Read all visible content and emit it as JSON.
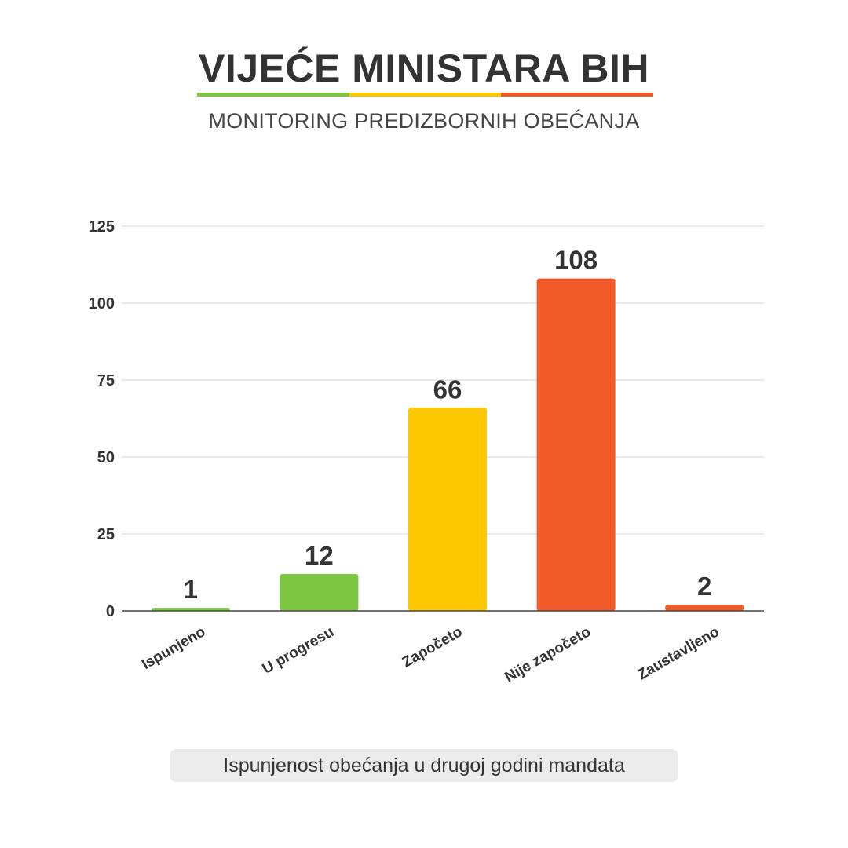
{
  "header": {
    "title": "VIJEĆE MINISTARA BIH",
    "subtitle": "MONITORING PREDIZBORNIH OBEĆANJA",
    "stripe_colors": [
      "#7dc63f",
      "#ffc700",
      "#f05a28"
    ]
  },
  "chart_data": {
    "type": "bar",
    "categories": [
      "Ispunjeno",
      "U progresu",
      "Započeto",
      "Nije započeto",
      "Zaustavljeno"
    ],
    "values": [
      1,
      12,
      66,
      108,
      2
    ],
    "colors": [
      "#7dc63f",
      "#7dc63f",
      "#ffc700",
      "#f05a28",
      "#f05a28"
    ],
    "yticks": [
      0,
      25,
      50,
      75,
      100,
      125
    ],
    "ylim": [
      0,
      125
    ],
    "grid": true,
    "data_labels": true,
    "legend": "none",
    "title": "",
    "xlabel": "",
    "ylabel": ""
  },
  "caption": "Ispunjenost obećanja u drugoj godini mandata"
}
